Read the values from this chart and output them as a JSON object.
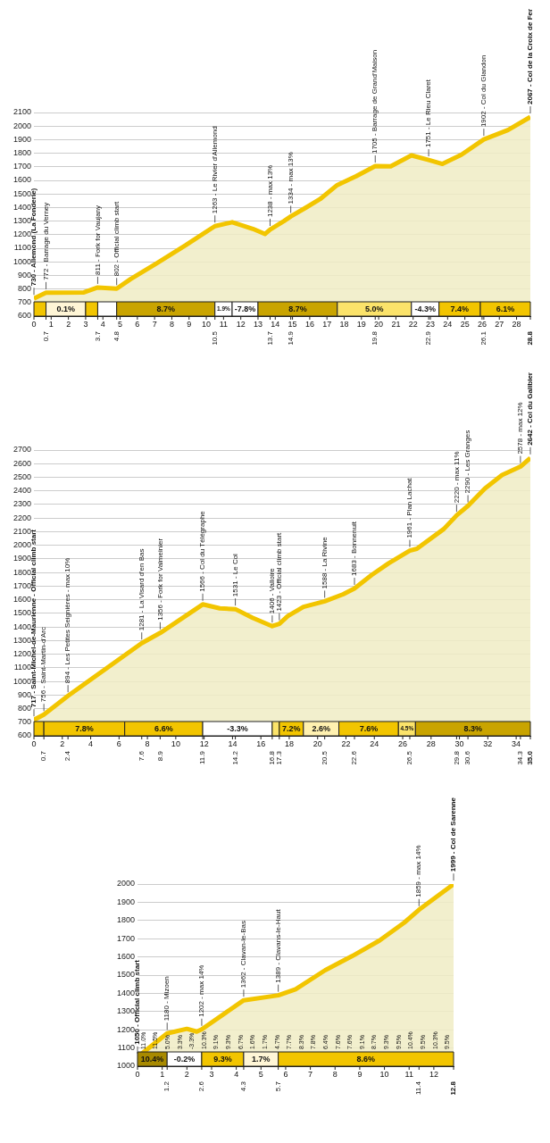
{
  "chart_data": [
    {
      "type": "area",
      "x": [
        0,
        0.7,
        2.9,
        3.7,
        4.8,
        5.6,
        7.1,
        8.8,
        10.5,
        11.5,
        12.7,
        13.4,
        13.7,
        14.5,
        14.9,
        15.8,
        16.6,
        17.6,
        18.7,
        19.8,
        20.7,
        21.9,
        22.9,
        23.7,
        24.8,
        26.1,
        27.5,
        28.8
      ],
      "series": [
        {
          "color": "#f2c500",
          "values": [
            730,
            772,
            775,
            811,
            802,
            872,
            988,
            1122,
            1263,
            1292,
            1243,
            1205,
            1238,
            1300,
            1334,
            1401,
            1462,
            1566,
            1631,
            1705,
            1704,
            1784,
            1751,
            1721,
            1789,
            1902,
            1971,
            2067
          ]
        }
      ],
      "xlim": [
        0,
        28.8
      ],
      "xticks": [
        0,
        1,
        2,
        3,
        4,
        5,
        6,
        7,
        8,
        9,
        10,
        11,
        12,
        13,
        14,
        15,
        16,
        17,
        18,
        19,
        20,
        21,
        22,
        23,
        24,
        25,
        26,
        27,
        28
      ],
      "x2lim": [
        0,
        28.8
      ],
      "x2ticks": [
        0.7,
        3.7,
        4.8,
        10.5,
        13.7,
        14.9,
        19.8,
        22.9,
        26.1,
        28.8
      ],
      "ylim": [
        600,
        2100
      ],
      "yticks": [
        600,
        700,
        800,
        900,
        1000,
        1100,
        1200,
        1300,
        1400,
        1500,
        1600,
        1700,
        1800,
        1900,
        2000,
        2100
      ],
      "grid": "y",
      "bands": [
        {
          "axis": "x",
          "from": 0,
          "to": 0.7,
          "color": "#f2c500"
        },
        {
          "axis": "x",
          "from": 0.7,
          "to": 3.0,
          "label": "0.1%",
          "color": "#fff6d6"
        },
        {
          "axis": "x",
          "from": 3.0,
          "to": 3.7,
          "color": "#f2c500"
        },
        {
          "axis": "x",
          "from": 3.7,
          "to": 4.8,
          "color": "#ffffff"
        },
        {
          "axis": "x",
          "from": 4.8,
          "to": 10.5,
          "label": "8.7%",
          "color": "#c9a400"
        },
        {
          "axis": "x",
          "from": 10.5,
          "to": 11.5,
          "label": "1.9%",
          "color": "#ffffff"
        },
        {
          "axis": "x",
          "from": 11.5,
          "to": 13.0,
          "label": "-7.8%",
          "color": "#ffffff"
        },
        {
          "axis": "x",
          "from": 13.0,
          "to": 17.6,
          "label": "8.7%",
          "color": "#c9a400"
        },
        {
          "axis": "x",
          "from": 17.6,
          "to": 21.9,
          "label": "5.0%",
          "color": "#fbe36a"
        },
        {
          "axis": "x",
          "from": 21.9,
          "to": 23.5,
          "label": "-4.3%",
          "color": "#ffffff"
        },
        {
          "axis": "x",
          "from": 23.5,
          "to": 25.9,
          "label": "7.4%",
          "color": "#f2c500"
        },
        {
          "axis": "x",
          "from": 25.9,
          "to": 28.8,
          "label": "6.1%",
          "color": "#f2c500"
        }
      ],
      "annotations": [
        {
          "text": "730 - Allemond (La Fonderie)",
          "x": 0,
          "y": 730
        },
        {
          "text": "772 - Barrage du Verney",
          "x": 0.7,
          "y": 772
        },
        {
          "text": "811 - Fork for Vaujany",
          "x": 3.7,
          "y": 811
        },
        {
          "text": "802 - Official climb start",
          "x": 4.8,
          "y": 802
        },
        {
          "text": "1263 - Le Rivier d'Allemond",
          "x": 10.5,
          "y": 1263
        },
        {
          "text": "1238 - max 13%",
          "x": 13.7,
          "y": 1238
        },
        {
          "text": "1334 - max 13%",
          "x": 14.9,
          "y": 1334
        },
        {
          "text": "1705 - Barrage de Grand'Maison",
          "x": 19.8,
          "y": 1705
        },
        {
          "text": "1751 - Le Rieu Claret",
          "x": 22.9,
          "y": 1751
        },
        {
          "text": "1902 - Col du Glandon",
          "x": 26.1,
          "y": 1902
        },
        {
          "text": "2067 - Col de la Croix de Fer",
          "x": 28.8,
          "y": 2067
        }
      ]
    },
    {
      "type": "area",
      "x": [
        0,
        0.7,
        2.4,
        7.6,
        8.9,
        11.9,
        13.1,
        14.2,
        15.4,
        16.8,
        17.3,
        17.9,
        19.0,
        20.5,
        21.8,
        22.6,
        23.8,
        25.0,
        26.5,
        27.0,
        28.9,
        29.8,
        30.6,
        31.8,
        33.0,
        34.3,
        35.0
      ],
      "series": [
        {
          "color": "#f2c500",
          "values": [
            717,
            756,
            894,
            1281,
            1356,
            1566,
            1537,
            1531,
            1468,
            1406,
            1423,
            1480,
            1547,
            1588,
            1640,
            1683,
            1781,
            1867,
            1961,
            1975,
            2120,
            2220,
            2290,
            2418,
            2516,
            2578,
            2642
          ]
        }
      ],
      "xlim": [
        0,
        35
      ],
      "xticks": [
        0,
        2,
        4,
        6,
        8,
        10,
        12,
        14,
        16,
        18,
        20,
        22,
        24,
        26,
        28,
        30,
        32,
        34
      ],
      "x2lim": [
        0,
        35
      ],
      "x2ticks": [
        0.7,
        2.4,
        7.6,
        8.9,
        11.9,
        14.2,
        16.8,
        17.3,
        20.5,
        22.6,
        26.5,
        29.8,
        30.6,
        34.3,
        {
          "value": 35,
          "label": "35.0"
        }
      ],
      "ylim": [
        600,
        2700
      ],
      "yticks": [
        600,
        700,
        800,
        900,
        1000,
        1100,
        1200,
        1300,
        1400,
        1500,
        1600,
        1700,
        1800,
        1900,
        2000,
        2100,
        2200,
        2300,
        2400,
        2500,
        2600,
        2700
      ],
      "grid": "y",
      "bands": [
        {
          "axis": "x",
          "from": 0,
          "to": 0.7,
          "color": "#f2c500"
        },
        {
          "axis": "x",
          "from": 0.7,
          "to": 6.4,
          "label": "7.8%",
          "color": "#f2c500"
        },
        {
          "axis": "x",
          "from": 6.4,
          "to": 11.9,
          "label": "6.6%",
          "color": "#f2c500"
        },
        {
          "axis": "x",
          "from": 11.9,
          "to": 16.8,
          "label": "-3.3%",
          "color": "#ffffff"
        },
        {
          "axis": "x",
          "from": 16.8,
          "to": 17.3,
          "color": "#fbe36a"
        },
        {
          "axis": "x",
          "from": 17.3,
          "to": 19.0,
          "label": "7.2%",
          "color": "#f2c500"
        },
        {
          "axis": "x",
          "from": 19.0,
          "to": 21.5,
          "label": "2.6%",
          "color": "#fff1b0"
        },
        {
          "axis": "x",
          "from": 21.5,
          "to": 25.7,
          "label": "7.6%",
          "color": "#f2c500"
        },
        {
          "axis": "x",
          "from": 25.7,
          "to": 26.9,
          "label": "4.5%",
          "color": "#fbe36a"
        },
        {
          "axis": "x",
          "from": 26.9,
          "to": 35,
          "label": "8.3%",
          "color": "#c9a400"
        }
      ],
      "annotations": [
        {
          "text": "717 - Saint-Michel-de-Maurienne - Official climb start",
          "x": 0,
          "y": 717
        },
        {
          "text": "756 - Saint-Martin-d'Arc",
          "x": 0.7,
          "y": 756
        },
        {
          "text": "894 - Les Petites Seignières - max 10%",
          "x": 2.4,
          "y": 894
        },
        {
          "text": "1281 - La Visard d'en Bas",
          "x": 7.6,
          "y": 1281
        },
        {
          "text": "1356 - Fork for Valmeinier",
          "x": 8.9,
          "y": 1356
        },
        {
          "text": "1566 - Col du Télégraphe",
          "x": 11.9,
          "y": 1566
        },
        {
          "text": "1531 - Le Col",
          "x": 14.2,
          "y": 1531
        },
        {
          "text": "1406 - Valloire",
          "x": 16.8,
          "y": 1406
        },
        {
          "text": "1423 - Official climb start",
          "x": 17.3,
          "y": 1423
        },
        {
          "text": "1588 - La Rivine",
          "x": 20.5,
          "y": 1588
        },
        {
          "text": "1683 - Bonnenuit",
          "x": 22.6,
          "y": 1683
        },
        {
          "text": "1961 - Plan Lachat",
          "x": 26.5,
          "y": 1961
        },
        {
          "text": "2220 - max 11%",
          "x": 29.8,
          "y": 2220
        },
        {
          "text": "2290 - Les Granges",
          "x": 30.6,
          "y": 2290
        },
        {
          "text": "2578 - max 12%",
          "x": 34.3,
          "y": 2578
        },
        {
          "text": "2642 - Col du Galibier",
          "x": 35,
          "y": 2642
        }
      ]
    },
    {
      "type": "area",
      "x": [
        0,
        1.2,
        2.0,
        2.4,
        2.6,
        4.3,
        5.7,
        6.4,
        7.6,
        8.7,
        9.8,
        10.8,
        11.4,
        12.8
      ],
      "series": [
        {
          "color": "#f2c500",
          "values": [
            1050,
            1180,
            1205,
            1190,
            1202,
            1362,
            1389,
            1422,
            1527,
            1605,
            1690,
            1788,
            1859,
            1999
          ]
        }
      ],
      "xlim": [
        0,
        12.8
      ],
      "xticks": [
        0,
        1,
        2,
        3,
        4,
        5,
        6,
        7,
        8,
        9,
        10,
        11,
        12
      ],
      "x2lim": [
        0,
        12.8
      ],
      "x2ticks": [
        1.2,
        2.6,
        4.3,
        5.7,
        11.4,
        12.8
      ],
      "ylim": [
        1000,
        2000
      ],
      "yticks": [
        1000,
        1100,
        1200,
        1300,
        1400,
        1500,
        1600,
        1700,
        1800,
        1900,
        2000
      ],
      "grid": "y",
      "bands": [
        {
          "axis": "x",
          "from": 0,
          "to": 1.2,
          "label": "10.4%",
          "color": "#a88a00"
        },
        {
          "axis": "x",
          "from": 1.2,
          "to": 2.6,
          "label": "-0.2%",
          "color": "#ffffff"
        },
        {
          "axis": "x",
          "from": 2.6,
          "to": 4.3,
          "label": "9.3%",
          "color": "#f2c500"
        },
        {
          "axis": "x",
          "from": 4.3,
          "to": 5.7,
          "label": "1.7%",
          "color": "#fff6d6"
        },
        {
          "axis": "x",
          "from": 5.7,
          "to": 12.8,
          "label": "8.6%",
          "color": "#f2c500"
        }
      ],
      "annotations": [
        {
          "text": "1050 - Official climb start",
          "x": 0,
          "y": 1050
        },
        {
          "text": "1180 - Mizoen",
          "x": 1.2,
          "y": 1180
        },
        {
          "text": "1202 - max 14%",
          "x": 2.6,
          "y": 1202
        },
        {
          "text": "1362 - Clavan-le-Bas",
          "x": 4.3,
          "y": 1362
        },
        {
          "text": "1389 - Clavans-le-Haut",
          "x": 5.7,
          "y": 1389
        },
        {
          "text": "1859 - max 14%",
          "x": 11.4,
          "y": 1859
        },
        {
          "text": "1999 - Col de Sarenne",
          "x": 12.8,
          "y": 1999
        },
        "11.0%",
        "11.5%",
        "5.0%",
        "3.3%",
        "-3.3%",
        "10.3%",
        "9.1%",
        "9.3%",
        "6.7%",
        "1.6%",
        "1.7%",
        "4.7%",
        "7.7%",
        "8.3%",
        "7.8%",
        "6.4%",
        "7.6%",
        "7.6%",
        "9.1%",
        "8.7%",
        "9.3%",
        "9.5%",
        "10.4%",
        "9.5%",
        "10.3%",
        "9.5%"
      ]
    }
  ]
}
